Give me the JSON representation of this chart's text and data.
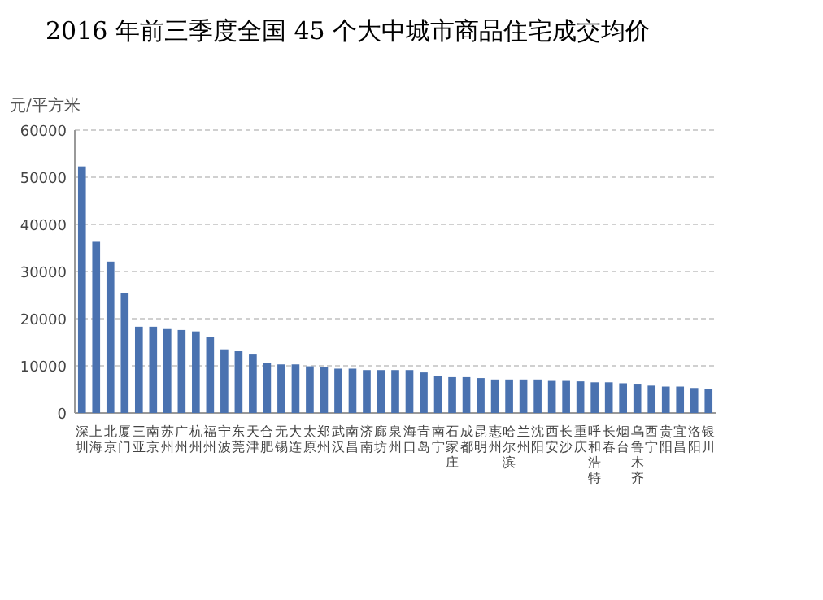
{
  "chart_data": {
    "type": "bar",
    "title": "2016 年前三季度全国 45 个大中城市商品住宅成交均价",
    "ylabel": "元/平方米",
    "categories": [
      "深圳",
      "上海",
      "北京",
      "厦门",
      "三亚",
      "南京",
      "苏州",
      "广州",
      "杭州",
      "福州",
      "宁波",
      "东莞",
      "天津",
      "合肥",
      "无锡",
      "大连",
      "太原",
      "郑州",
      "武汉",
      "南昌",
      "济南",
      "廊坊",
      "泉州",
      "海口",
      "青岛",
      "南宁",
      "石家庄",
      "成都",
      "昆明",
      "惠州",
      "哈尔滨",
      "兰州",
      "沈阳",
      "西安",
      "长沙",
      "重庆",
      "呼和浩特",
      "长春",
      "烟台",
      "乌鲁木齐",
      "西宁",
      "贵阳",
      "宜昌",
      "洛阳",
      "银川"
    ],
    "values": [
      52300,
      36300,
      32100,
      25500,
      18300,
      18300,
      17800,
      17600,
      17300,
      16100,
      13500,
      13100,
      12400,
      10600,
      10300,
      10300,
      9900,
      9700,
      9400,
      9400,
      9100,
      9100,
      9100,
      9100,
      8600,
      7800,
      7600,
      7600,
      7400,
      7100,
      7100,
      7100,
      7100,
      6800,
      6800,
      6700,
      6500,
      6500,
      6300,
      6200,
      5800,
      5600,
      5600,
      5300,
      5000
    ],
    "color": "#4a72b0",
    "ylim": [
      0,
      60000
    ],
    "yticks": [
      0,
      10000,
      20000,
      30000,
      40000,
      50000,
      60000
    ],
    "grid": "y"
  }
}
